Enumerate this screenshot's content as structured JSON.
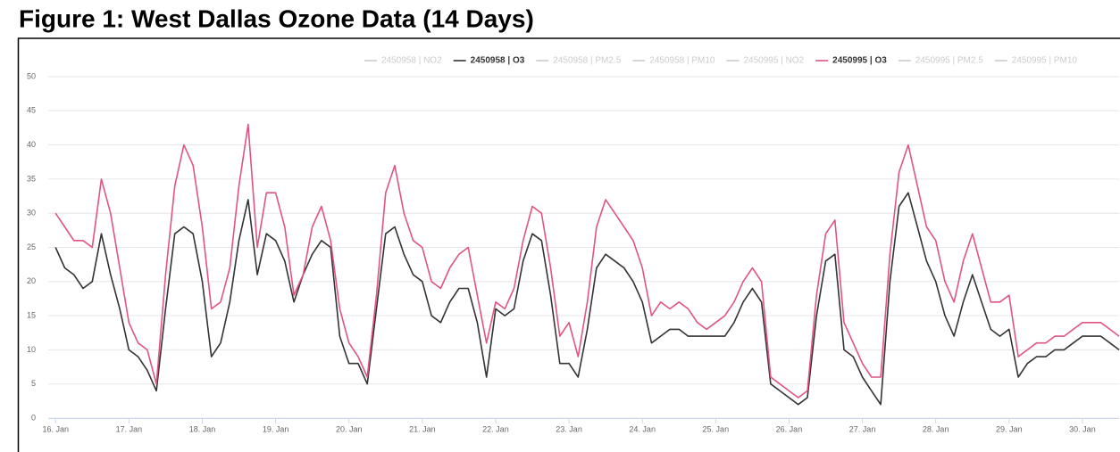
{
  "chart_data": {
    "type": "line",
    "title": "Figure 1: West Dallas Ozone Data (14 Days)",
    "x": [
      16,
      16.125,
      16.25,
      16.375,
      16.5,
      16.625,
      16.75,
      16.875,
      17,
      17.125,
      17.25,
      17.375,
      17.5,
      17.625,
      17.75,
      17.875,
      18,
      18.125,
      18.25,
      18.375,
      18.5,
      18.625,
      18.75,
      18.875,
      19,
      19.125,
      19.25,
      19.375,
      19.5,
      19.625,
      19.75,
      19.875,
      20,
      20.125,
      20.25,
      20.375,
      20.5,
      20.625,
      20.75,
      20.875,
      21,
      21.125,
      21.25,
      21.375,
      21.5,
      21.625,
      21.75,
      21.875,
      22,
      22.125,
      22.25,
      22.375,
      22.5,
      22.625,
      22.75,
      22.875,
      23,
      23.125,
      23.25,
      23.375,
      23.5,
      23.625,
      23.75,
      23.875,
      24,
      24.125,
      24.25,
      24.375,
      24.5,
      24.625,
      24.75,
      24.875,
      25,
      25.125,
      25.25,
      25.375,
      25.5,
      25.625,
      25.75,
      25.875,
      26,
      26.125,
      26.25,
      26.375,
      26.5,
      26.625,
      26.75,
      26.875,
      27,
      27.125,
      27.25,
      27.375,
      27.5,
      27.625,
      27.75,
      27.875,
      28,
      28.125,
      28.25,
      28.375,
      28.5,
      28.625,
      28.75,
      28.875,
      29,
      29.125,
      29.25,
      29.375,
      29.5,
      29.625,
      29.75,
      29.875,
      30,
      30.125,
      30.25,
      30.375,
      30.5
    ],
    "series": [
      {
        "name": "2450958 | NO2",
        "visible": false
      },
      {
        "name": "2450958 | O3",
        "color": "#333333",
        "visible": true,
        "values": [
          25,
          22,
          21,
          19,
          20,
          27,
          21,
          16,
          10,
          9,
          7,
          4,
          16,
          27,
          28,
          27,
          20,
          9,
          11,
          17,
          26,
          32,
          21,
          27,
          26,
          23,
          17,
          21,
          24,
          26,
          25,
          12,
          8,
          8,
          5,
          16,
          27,
          28,
          24,
          21,
          20,
          15,
          14,
          17,
          19,
          19,
          14,
          6,
          16,
          15,
          16,
          23,
          27,
          26,
          18,
          8,
          8,
          6,
          13,
          22,
          24,
          23,
          22,
          20,
          17,
          11,
          12,
          13,
          13,
          12,
          12,
          12,
          12,
          12,
          14,
          17,
          19,
          17,
          5,
          4,
          3,
          2,
          3,
          15,
          23,
          24,
          10,
          9,
          6,
          4,
          2,
          20,
          31,
          33,
          28,
          23,
          20,
          15,
          12,
          17,
          21,
          17,
          13,
          12,
          13,
          6,
          8,
          9,
          9,
          10,
          10,
          11,
          12,
          12,
          12,
          11,
          10
        ]
      },
      {
        "name": "2450958 | PM2.5",
        "visible": false
      },
      {
        "name": "2450958 | PM10",
        "visible": false
      },
      {
        "name": "2450995 | NO2",
        "visible": false
      },
      {
        "name": "2450995 | O3",
        "color": "#e0557f",
        "visible": true,
        "values": [
          30,
          28,
          26,
          26,
          25,
          35,
          30,
          22,
          14,
          11,
          10,
          5,
          21,
          34,
          40,
          37,
          28,
          16,
          17,
          22,
          34,
          43,
          25,
          33,
          33,
          28,
          18,
          21,
          28,
          31,
          26,
          16,
          11,
          9,
          6,
          18,
          33,
          37,
          30,
          26,
          25,
          20,
          19,
          22,
          24,
          25,
          18,
          11,
          17,
          16,
          19,
          26,
          31,
          30,
          22,
          12,
          14,
          9,
          17,
          28,
          32,
          30,
          28,
          26,
          22,
          15,
          17,
          16,
          17,
          16,
          14,
          13,
          14,
          15,
          17,
          20,
          22,
          20,
          6,
          5,
          4,
          3,
          4,
          18,
          27,
          29,
          14,
          11,
          8,
          6,
          6,
          24,
          36,
          40,
          34,
          28,
          26,
          20,
          17,
          23,
          27,
          22,
          17,
          17,
          18,
          9,
          10,
          11,
          11,
          12,
          12,
          13,
          14,
          14,
          14,
          13,
          12
        ]
      },
      {
        "name": "2450995 | PM2.5",
        "visible": false
      },
      {
        "name": "2450995 | PM10",
        "visible": false
      }
    ],
    "xlim": [
      15.9,
      30.5
    ],
    "xticks": [
      {
        "value": 16,
        "label": "16. Jan"
      },
      {
        "value": 17,
        "label": "17. Jan"
      },
      {
        "value": 18,
        "label": "18. Jan"
      },
      {
        "value": 19,
        "label": "19. Jan"
      },
      {
        "value": 20,
        "label": "20. Jan"
      },
      {
        "value": 21,
        "label": "21. Jan"
      },
      {
        "value": 22,
        "label": "22. Jan"
      },
      {
        "value": 23,
        "label": "23. Jan"
      },
      {
        "value": 24,
        "label": "24. Jan"
      },
      {
        "value": 25,
        "label": "25. Jan"
      },
      {
        "value": 26,
        "label": "26. Jan"
      },
      {
        "value": 27,
        "label": "27. Jan"
      },
      {
        "value": 28,
        "label": "28. Jan"
      },
      {
        "value": 29,
        "label": "29. Jan"
      },
      {
        "value": 30,
        "label": "30. Jan"
      }
    ],
    "ylim": [
      0,
      50
    ],
    "yticks": [
      0,
      5,
      10,
      15,
      20,
      25,
      30,
      35,
      40,
      45,
      50
    ],
    "grid": true,
    "legend": "top"
  }
}
